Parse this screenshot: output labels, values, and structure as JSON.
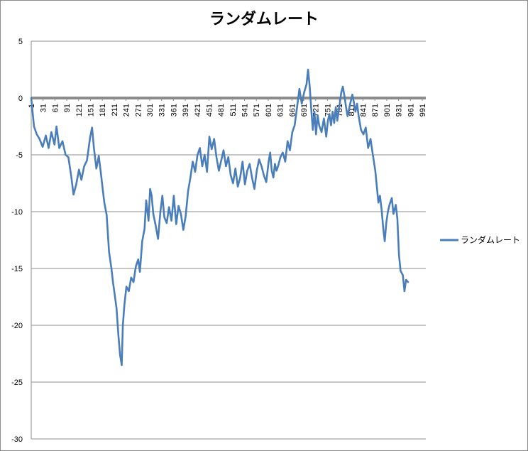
{
  "chart_data": {
    "type": "line",
    "title": "ランダムレート",
    "xlabel": "",
    "ylabel": "",
    "ylim": [
      -30,
      5
    ],
    "y_ticks": [
      "5",
      "0",
      "-5",
      "-10",
      "-15",
      "-20",
      "-25",
      "-30"
    ],
    "x_ticks": [
      "1",
      "31",
      "61",
      "91",
      "121",
      "151",
      "181",
      "211",
      "241",
      "271",
      "301",
      "331",
      "361",
      "391",
      "421",
      "451",
      "481",
      "511",
      "541",
      "571",
      "601",
      "631",
      "661",
      "691",
      "721",
      "751",
      "781",
      "811",
      "841",
      "871",
      "901",
      "931",
      "961",
      "991"
    ],
    "xlim": [
      1,
      1000
    ],
    "grid": "horizontal",
    "legend_position": "right",
    "series": [
      {
        "name": "ランダムレート",
        "color": "#4a7ebb",
        "points": [
          [
            1,
            0
          ],
          [
            8,
            -2.5
          ],
          [
            15,
            -3.2
          ],
          [
            22,
            -3.6
          ],
          [
            30,
            -4.3
          ],
          [
            38,
            -3.3
          ],
          [
            45,
            -4.4
          ],
          [
            52,
            -3.0
          ],
          [
            60,
            -4.1
          ],
          [
            65,
            -2.5
          ],
          [
            72,
            -4.4
          ],
          [
            80,
            -3.8
          ],
          [
            88,
            -5.0
          ],
          [
            95,
            -5.2
          ],
          [
            102,
            -6.8
          ],
          [
            108,
            -8.5
          ],
          [
            115,
            -7.6
          ],
          [
            122,
            -6.3
          ],
          [
            128,
            -7.2
          ],
          [
            135,
            -6.0
          ],
          [
            142,
            -5.5
          ],
          [
            150,
            -3.5
          ],
          [
            155,
            -2.6
          ],
          [
            160,
            -4.5
          ],
          [
            166,
            -6.2
          ],
          [
            172,
            -5.1
          ],
          [
            178,
            -6.8
          ],
          [
            182,
            -8.0
          ],
          [
            186,
            -9.2
          ],
          [
            192,
            -10.3
          ],
          [
            198,
            -13.5
          ],
          [
            204,
            -15.0
          ],
          [
            208,
            -16.2
          ],
          [
            212,
            -17.2
          ],
          [
            217,
            -18.5
          ],
          [
            222,
            -21.0
          ],
          [
            226,
            -22.6
          ],
          [
            230,
            -23.5
          ],
          [
            233,
            -20.0
          ],
          [
            237,
            -18.2
          ],
          [
            242,
            -16.6
          ],
          [
            248,
            -17.0
          ],
          [
            254,
            -15.8
          ],
          [
            260,
            -16.2
          ],
          [
            266,
            -14.8
          ],
          [
            272,
            -14.2
          ],
          [
            276,
            -15.3
          ],
          [
            282,
            -12.6
          ],
          [
            288,
            -11.5
          ],
          [
            292,
            -9.0
          ],
          [
            298,
            -10.8
          ],
          [
            302,
            -8.0
          ],
          [
            306,
            -8.6
          ],
          [
            310,
            -10.2
          ],
          [
            316,
            -11.2
          ],
          [
            322,
            -12.4
          ],
          [
            328,
            -10.0
          ],
          [
            333,
            -8.6
          ],
          [
            338,
            -10.5
          ],
          [
            344,
            -11.0
          ],
          [
            350,
            -9.6
          ],
          [
            356,
            -10.8
          ],
          [
            362,
            -8.6
          ],
          [
            368,
            -11.1
          ],
          [
            374,
            -9.5
          ],
          [
            380,
            -10.2
          ],
          [
            386,
            -11.6
          ],
          [
            392,
            -10.4
          ],
          [
            398,
            -8.2
          ],
          [
            404,
            -7.0
          ],
          [
            410,
            -5.6
          ],
          [
            416,
            -6.5
          ],
          [
            422,
            -5.0
          ],
          [
            428,
            -4.4
          ],
          [
            434,
            -6.0
          ],
          [
            440,
            -5.0
          ],
          [
            446,
            -6.5
          ],
          [
            452,
            -3.4
          ],
          [
            458,
            -4.5
          ],
          [
            464,
            -3.6
          ],
          [
            470,
            -5.2
          ],
          [
            476,
            -6.4
          ],
          [
            482,
            -5.5
          ],
          [
            488,
            -4.6
          ],
          [
            494,
            -6.0
          ],
          [
            500,
            -5.2
          ],
          [
            506,
            -6.8
          ],
          [
            512,
            -7.5
          ],
          [
            518,
            -6.2
          ],
          [
            524,
            -7.8
          ],
          [
            530,
            -7.0
          ],
          [
            536,
            -5.6
          ],
          [
            542,
            -7.6
          ],
          [
            548,
            -6.4
          ],
          [
            554,
            -5.8
          ],
          [
            560,
            -7.0
          ],
          [
            566,
            -8.0
          ],
          [
            572,
            -6.4
          ],
          [
            578,
            -5.4
          ],
          [
            584,
            -6.0
          ],
          [
            590,
            -6.8
          ],
          [
            596,
            -7.4
          ],
          [
            602,
            -5.6
          ],
          [
            606,
            -4.8
          ],
          [
            610,
            -6.4
          ],
          [
            614,
            -7.0
          ],
          [
            618,
            -5.8
          ],
          [
            622,
            -6.4
          ],
          [
            626,
            -6.0
          ],
          [
            632,
            -5.2
          ],
          [
            638,
            -4.8
          ],
          [
            644,
            -5.6
          ],
          [
            650,
            -3.8
          ],
          [
            656,
            -4.6
          ],
          [
            662,
            -3.0
          ],
          [
            668,
            -2.4
          ],
          [
            674,
            -0.8
          ],
          [
            680,
            0.8
          ],
          [
            686,
            -0.5
          ],
          [
            692,
            0.5
          ],
          [
            698,
            1.2
          ],
          [
            702,
            2.5
          ],
          [
            706,
            1.0
          ],
          [
            710,
            -1.0
          ],
          [
            714,
            -2.8
          ],
          [
            718,
            -1.2
          ],
          [
            722,
            -3.2
          ],
          [
            726,
            -1.5
          ],
          [
            730,
            -2.4
          ],
          [
            736,
            -3.0
          ],
          [
            742,
            -1.8
          ],
          [
            748,
            -3.4
          ],
          [
            752,
            -2.0
          ],
          [
            756,
            -1.4
          ],
          [
            760,
            -2.4
          ],
          [
            764,
            -1.2
          ],
          [
            768,
            -2.2
          ],
          [
            772,
            -0.8
          ],
          [
            776,
            -2.0
          ],
          [
            780,
            -1.0
          ],
          [
            786,
            0.5
          ],
          [
            790,
            1.0
          ],
          [
            794,
            0.2
          ],
          [
            798,
            -0.8
          ],
          [
            802,
            -1.6
          ],
          [
            808,
            -0.6
          ],
          [
            814,
            0.3
          ],
          [
            818,
            -0.4
          ],
          [
            822,
            -1.2
          ],
          [
            826,
            -0.5
          ],
          [
            830,
            -1.6
          ],
          [
            836,
            -2.8
          ],
          [
            842,
            -3.2
          ],
          [
            848,
            -2.6
          ],
          [
            854,
            -4.4
          ],
          [
            860,
            -3.6
          ],
          [
            866,
            -5.0
          ],
          [
            872,
            -6.4
          ],
          [
            876,
            -7.8
          ],
          [
            880,
            -9.2
          ],
          [
            884,
            -8.6
          ],
          [
            888,
            -9.8
          ],
          [
            892,
            -11.4
          ],
          [
            896,
            -12.6
          ],
          [
            900,
            -11.0
          ],
          [
            904,
            -10.0
          ],
          [
            908,
            -9.4
          ],
          [
            914,
            -8.8
          ],
          [
            918,
            -10.2
          ],
          [
            924,
            -9.4
          ],
          [
            928,
            -10.6
          ],
          [
            932,
            -13.8
          ],
          [
            936,
            -15.2
          ],
          [
            942,
            -15.6
          ],
          [
            946,
            -17.0
          ],
          [
            950,
            -16.0
          ],
          [
            955,
            -16.2
          ]
        ]
      }
    ]
  }
}
